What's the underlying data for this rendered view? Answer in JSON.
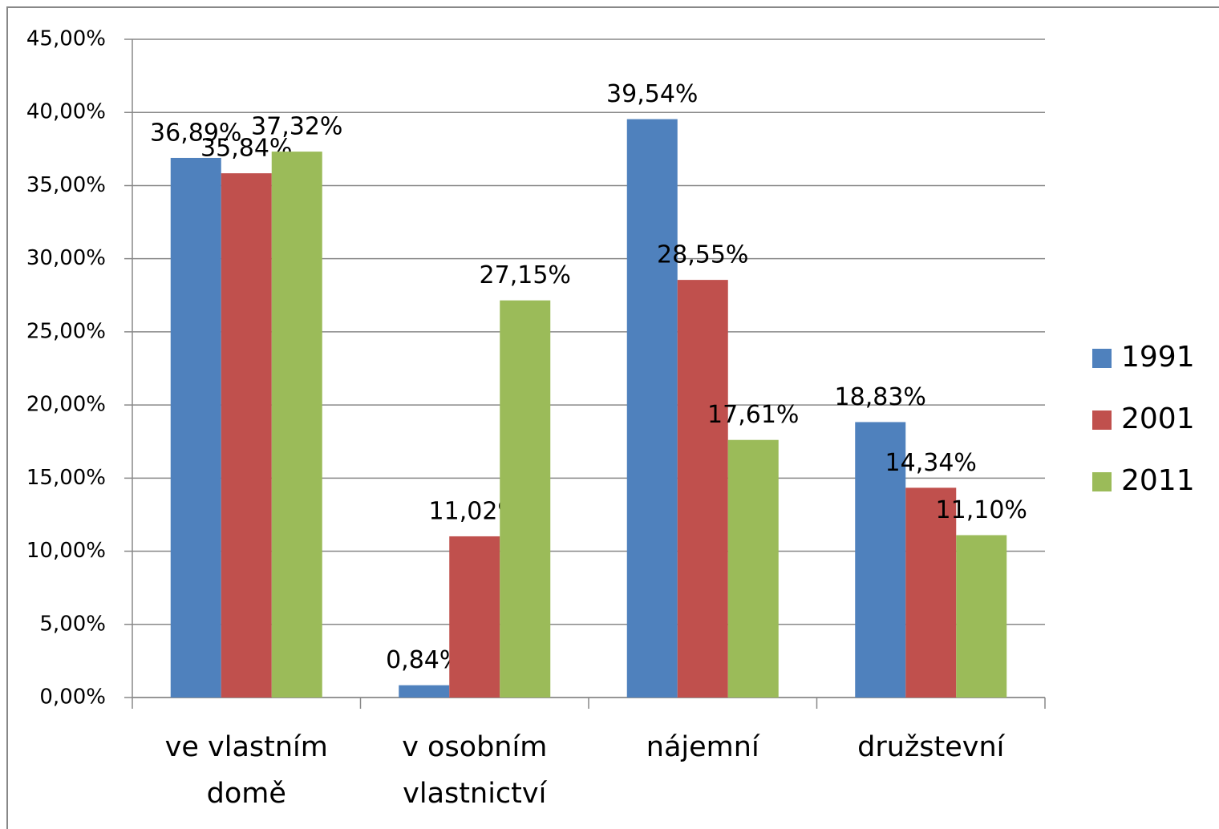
{
  "chart_data": {
    "type": "bar",
    "categories": [
      "ve vlastním domě",
      "v osobním vlastnictví",
      "nájemní",
      "družstevní"
    ],
    "series": [
      {
        "name": "1991",
        "color": "#4f81bd",
        "values": [
          36.89,
          0.84,
          39.54,
          18.83
        ],
        "value_labels": [
          "36,89%",
          "0,84%",
          "39,54%",
          "18,83%"
        ]
      },
      {
        "name": "2001",
        "color": "#c0504d",
        "values": [
          35.84,
          11.02,
          28.55,
          14.34
        ],
        "value_labels": [
          "35,84%",
          "11,02%",
          "28,55%",
          "14,34%"
        ]
      },
      {
        "name": "2011",
        "color": "#9bbb59",
        "values": [
          37.32,
          27.15,
          17.61,
          11.1
        ],
        "value_labels": [
          "37,32%",
          "27,15%",
          "17,61%",
          "11,10%"
        ]
      }
    ],
    "ylim": [
      0,
      45
    ],
    "yticks": [
      {
        "value": 0,
        "label": "0,00%"
      },
      {
        "value": 5,
        "label": "5,00%"
      },
      {
        "value": 10,
        "label": "10,00%"
      },
      {
        "value": 15,
        "label": "15,00%"
      },
      {
        "value": 20,
        "label": "20,00%"
      },
      {
        "value": 25,
        "label": "25,00%"
      },
      {
        "value": 30,
        "label": "30,00%"
      },
      {
        "value": 35,
        "label": "35,00%"
      },
      {
        "value": 40,
        "label": "40,00%"
      },
      {
        "value": 45,
        "label": "45,00%"
      }
    ],
    "grid": true,
    "legend": "right"
  }
}
